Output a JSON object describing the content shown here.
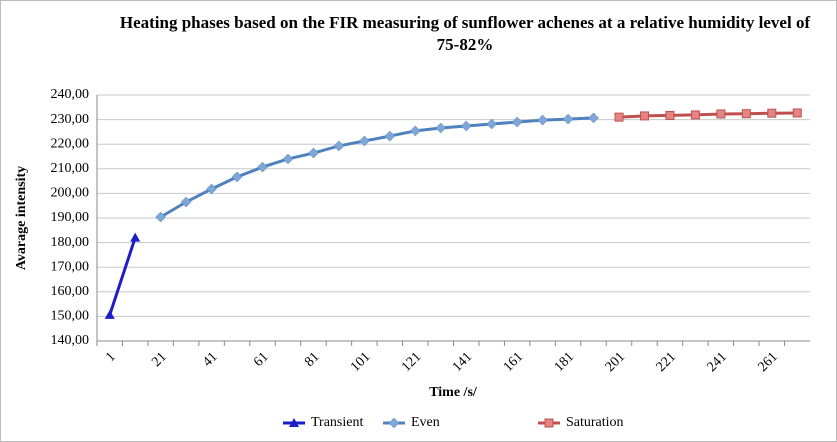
{
  "chart_data": {
    "type": "line",
    "title": "Heating phases based on the FIR measuring of sunflower achenes at a relative humidity level of 75-82%",
    "x_label": "Time /s/",
    "y_label": "Avarage intensity",
    "categories": [
      1,
      null,
      21,
      null,
      41,
      null,
      61,
      null,
      81,
      null,
      101,
      null,
      121,
      null,
      141,
      null,
      161,
      null,
      181,
      null,
      201,
      null,
      221,
      null,
      241,
      null,
      261,
      null
    ],
    "series": [
      {
        "name": "Transient",
        "color": "#1c1cc8",
        "marker": "triangle",
        "values": [
          150.6,
          182,
          null,
          null,
          null,
          null,
          null,
          null,
          null,
          null,
          null,
          null,
          null,
          null,
          null,
          null,
          null,
          null,
          null,
          null,
          null,
          null,
          null,
          null,
          null,
          null,
          null,
          null
        ]
      },
      {
        "name": "Even",
        "color": "#4f81bd",
        "marker": "diamond",
        "values": [
          null,
          null,
          190.4,
          196.5,
          201.8,
          206.7,
          210.7,
          214,
          216.4,
          219.3,
          221.3,
          223.3,
          225.4,
          226.6,
          227.4,
          228.2,
          229,
          229.8,
          230.2,
          230.7,
          null,
          null,
          null,
          null,
          null,
          null,
          null,
          null
        ]
      },
      {
        "name": "Saturation",
        "color": "#c0504d",
        "marker": "square",
        "values": [
          null,
          null,
          null,
          null,
          null,
          null,
          null,
          null,
          null,
          null,
          null,
          null,
          null,
          null,
          null,
          null,
          null,
          null,
          null,
          null,
          231,
          231.5,
          231.7,
          231.9,
          232.3,
          232.4,
          232.6,
          232.7
        ]
      }
    ],
    "ylim": [
      140,
      240
    ],
    "yticks": [
      {
        "value": 140,
        "label": "140,00"
      },
      {
        "value": 150,
        "label": "150,00"
      },
      {
        "value": 160,
        "label": "160,00"
      },
      {
        "value": 170,
        "label": "170,00"
      },
      {
        "value": 180,
        "label": "180,00"
      },
      {
        "value": 190,
        "label": "190,00"
      },
      {
        "value": 200,
        "label": "200,00"
      },
      {
        "value": 210,
        "label": "210,00"
      },
      {
        "value": 220,
        "label": "220,00"
      },
      {
        "value": 230,
        "label": "230,00"
      },
      {
        "value": 240,
        "label": "240,00"
      }
    ],
    "grid": true,
    "legend": "bottom"
  }
}
